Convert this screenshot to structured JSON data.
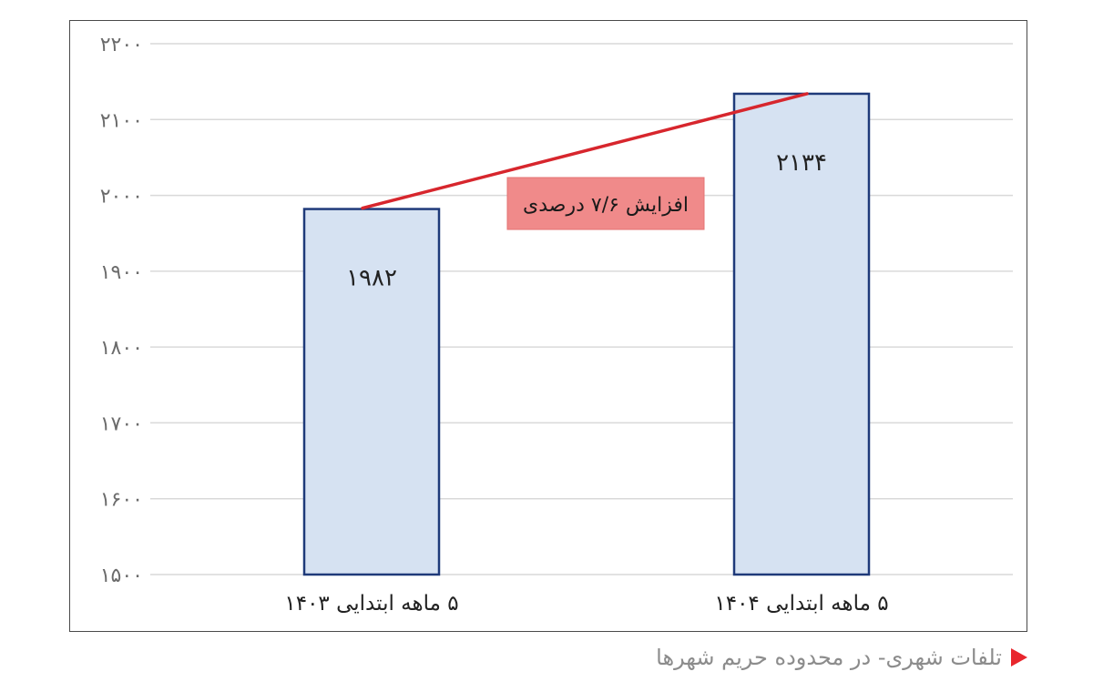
{
  "chart_data": {
    "type": "bar",
    "categories": [
      "۵ ماهه ابتدایی ۱۴۰۳",
      "۵ ماهه ابتدایی ۱۴۰۴"
    ],
    "values": [
      1982,
      2134
    ],
    "value_labels": [
      "۱۹۸۲",
      "۲۱۳۴"
    ],
    "ylim": [
      1500,
      2200
    ],
    "yticks": [
      1500,
      1600,
      1700,
      1800,
      1900,
      2000,
      2100,
      2200
    ],
    "ytick_labels": [
      "۱۵۰۰",
      "۱۶۰۰",
      "۱۷۰۰",
      "۱۸۰۰",
      "۱۹۰۰",
      "۲۰۰۰",
      "۲۱۰۰",
      "۲۲۰۰"
    ],
    "grid": true,
    "annotation": {
      "text": "افزایش ۷/۶ درصدی",
      "background": "#f08a8a"
    },
    "colors": {
      "bar_fill": "#d6e2f2",
      "bar_stroke": "#1f3a7a",
      "trend_line": "#d7262d",
      "grid": "#d9d9d9"
    }
  },
  "caption": {
    "text": "تلفات شهری- در محدوده حریم شهرها",
    "marker_color": "#e8262d"
  }
}
